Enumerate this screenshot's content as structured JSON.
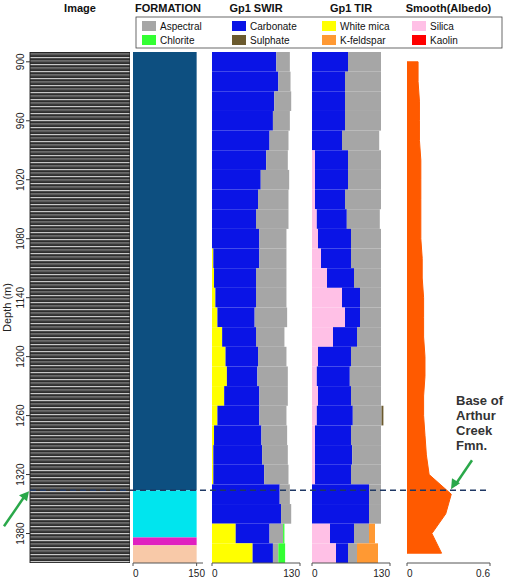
{
  "chart_data": {
    "type": "well_log",
    "ylabel": "Depth (m)",
    "ylim": [
      890,
      1410
    ],
    "yticks": [
      900,
      960,
      1020,
      1080,
      1140,
      1200,
      1260,
      1320,
      1380
    ],
    "legend": "top",
    "legend_items": [
      {
        "name": "Aspectral",
        "color": "#a6a6a6"
      },
      {
        "name": "Carbonate",
        "color": "#0a14e6"
      },
      {
        "name": "White mica",
        "color": "#ffff00"
      },
      {
        "name": "Silica",
        "color": "#ffc0e6"
      },
      {
        "name": "Chlorite",
        "color": "#33ff33"
      },
      {
        "name": "Sulphate",
        "color": "#6b5a2e"
      },
      {
        "name": "K-feldspar",
        "color": "#ff9933"
      },
      {
        "name": "Kaolin",
        "color": "#ff0000"
      }
    ],
    "tracks": [
      {
        "type": "image",
        "title": "Image"
      },
      {
        "type": "intervals",
        "title": "FORMATION",
        "xlim": [
          0,
          165
        ],
        "xticks": [
          0,
          150
        ],
        "intervals": [
          {
            "top": 890,
            "base": 1336,
            "value": 150,
            "color": "#0d4f80"
          },
          {
            "top": 1336,
            "base": 1384,
            "value": 150,
            "color": "#00e5ee"
          },
          {
            "top": 1384,
            "base": 1392,
            "value": 150,
            "color": "#e020c0"
          },
          {
            "top": 1392,
            "base": 1410,
            "value": 150,
            "color": "#f8c9a8"
          }
        ]
      },
      {
        "type": "bar",
        "stacked": true,
        "orientation": "horizontal",
        "title": "Gp1 SWIR",
        "xlim": [
          0,
          130
        ],
        "xticks": [
          0,
          130
        ],
        "bins": [
          890,
          910,
          930,
          950,
          970,
          990,
          1010,
          1030,
          1050,
          1070,
          1090,
          1110,
          1130,
          1150,
          1170,
          1190,
          1210,
          1230,
          1250,
          1270,
          1290,
          1310,
          1330,
          1350,
          1370,
          1390,
          1410
        ],
        "series": [
          {
            "name": "White mica",
            "color": "#ffff00",
            "values": [
              0,
              0,
              0,
              0,
              0,
              0,
              0,
              0,
              0,
              0,
              2,
              3,
              5,
              8,
              15,
              20,
              22,
              18,
              8,
              3,
              2,
              2,
              0,
              0,
              35,
              60
            ]
          },
          {
            "name": "Carbonate",
            "color": "#0a14e6",
            "values": [
              95,
              98,
              92,
              90,
              85,
              80,
              72,
              68,
              65,
              70,
              68,
              62,
              60,
              55,
              50,
              48,
              45,
              52,
              62,
              70,
              72,
              75,
              100,
              102,
              50,
              30
            ]
          },
          {
            "name": "Aspectral",
            "color": "#a6a6a6",
            "values": [
              20,
              18,
              25,
              25,
              28,
              32,
              42,
              45,
              48,
              40,
              40,
              45,
              45,
              48,
              42,
              42,
              45,
              42,
              40,
              38,
              38,
              36,
              15,
              15,
              20,
              8
            ]
          },
          {
            "name": "Chlorite",
            "color": "#33ff33",
            "values": [
              0,
              0,
              0,
              0,
              0,
              0,
              0,
              0,
              0,
              0,
              0,
              0,
              0,
              0,
              0,
              0,
              0,
              0,
              0,
              0,
              0,
              0,
              0,
              0,
              2,
              10
            ]
          }
        ]
      },
      {
        "type": "bar",
        "stacked": true,
        "orientation": "horizontal",
        "title": "Gp1 TIR",
        "xlim": [
          0,
          130
        ],
        "xticks": [
          0,
          130
        ],
        "bins": [
          890,
          910,
          930,
          950,
          970,
          990,
          1010,
          1030,
          1050,
          1070,
          1090,
          1110,
          1130,
          1150,
          1170,
          1190,
          1210,
          1230,
          1250,
          1270,
          1290,
          1310,
          1330,
          1350,
          1370,
          1390,
          1410
        ],
        "series": [
          {
            "name": "Silica",
            "color": "#ffc0e6",
            "values": [
              0,
              0,
              0,
              0,
              0,
              5,
              5,
              5,
              8,
              10,
              15,
              25,
              50,
              55,
              35,
              10,
              8,
              10,
              8,
              5,
              5,
              5,
              0,
              0,
              30,
              40
            ]
          },
          {
            "name": "Carbonate",
            "color": "#0a14e6",
            "values": [
              60,
              55,
              55,
              55,
              50,
              55,
              55,
              50,
              50,
              55,
              50,
              45,
              30,
              25,
              40,
              55,
              55,
              55,
              60,
              60,
              62,
              60,
              95,
              95,
              40,
              20
            ]
          },
          {
            "name": "Aspectral",
            "color": "#a6a6a6",
            "values": [
              55,
              60,
              60,
              60,
              62,
              55,
              55,
              60,
              55,
              50,
              50,
              45,
              35,
              35,
              40,
              50,
              52,
              50,
              48,
              50,
              48,
              50,
              20,
              20,
              25,
              15
            ]
          },
          {
            "name": "Sulphate",
            "color": "#6b5a2e",
            "values": [
              0,
              0,
              0,
              0,
              0,
              0,
              0,
              0,
              0,
              0,
              0,
              0,
              0,
              0,
              0,
              0,
              0,
              0,
              3,
              0,
              0,
              0,
              0,
              0,
              0,
              0
            ]
          },
          {
            "name": "K-feldspar",
            "color": "#ff9933",
            "values": [
              0,
              0,
              0,
              0,
              0,
              0,
              0,
              0,
              0,
              0,
              0,
              0,
              0,
              0,
              0,
              0,
              0,
              0,
              0,
              0,
              0,
              0,
              0,
              0,
              10,
              35
            ]
          }
        ]
      },
      {
        "type": "area",
        "title": "Smooth(Albedo)",
        "xlim": [
          0,
          0.6
        ],
        "xticks": [
          0,
          0.6
        ],
        "color": "#ff5a00",
        "depths": [
          900,
          920,
          940,
          960,
          980,
          1000,
          1020,
          1040,
          1060,
          1080,
          1100,
          1120,
          1140,
          1160,
          1180,
          1200,
          1220,
          1240,
          1260,
          1280,
          1300,
          1320,
          1340,
          1360,
          1380,
          1400
        ],
        "values": [
          0.08,
          0.08,
          0.09,
          0.09,
          0.09,
          0.1,
          0.1,
          0.1,
          0.1,
          0.1,
          0.11,
          0.11,
          0.12,
          0.12,
          0.12,
          0.13,
          0.13,
          0.12,
          0.12,
          0.13,
          0.14,
          0.16,
          0.32,
          0.28,
          0.18,
          0.25
        ]
      }
    ],
    "annotations": [
      {
        "text": "Base of Arthur Creek Fmn.",
        "depth": 1336
      }
    ]
  }
}
